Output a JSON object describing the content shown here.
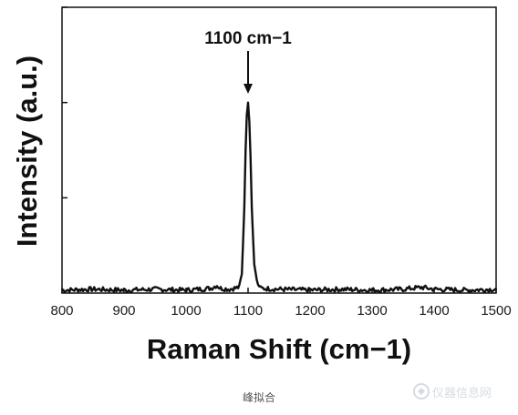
{
  "chart_data": {
    "type": "line",
    "xlabel": "Raman Shift  (cm−1)",
    "ylabel": "Intensity (a.u.)",
    "xlim": [
      800,
      1500
    ],
    "ylim": [
      0,
      3
    ],
    "x_ticks": [
      "800",
      "900",
      "1000",
      "1100",
      "1200",
      "1300",
      "1400",
      "1500"
    ],
    "y_tick_count": 3,
    "grid": false,
    "annotation": {
      "text": "1100 cm−1",
      "x": 1100
    },
    "series": [
      {
        "x": [
          800,
          850,
          900,
          950,
          1000,
          1040,
          1050,
          1055,
          1070,
          1085,
          1090,
          1094,
          1097,
          1100,
          1103,
          1106,
          1110,
          1115,
          1120,
          1150,
          1200,
          1250,
          1300,
          1350,
          1380,
          1390,
          1400,
          1450,
          1500
        ],
        "y": [
          0.03,
          0.04,
          0.03,
          0.04,
          0.03,
          0.05,
          0.08,
          0.05,
          0.04,
          0.06,
          0.2,
          0.9,
          1.8,
          2.0,
          1.7,
          0.9,
          0.3,
          0.1,
          0.05,
          0.04,
          0.03,
          0.04,
          0.03,
          0.04,
          0.06,
          0.05,
          0.04,
          0.03,
          0.04
        ]
      }
    ]
  },
  "caption": "峰拟合",
  "watermark": "仪器信息网"
}
